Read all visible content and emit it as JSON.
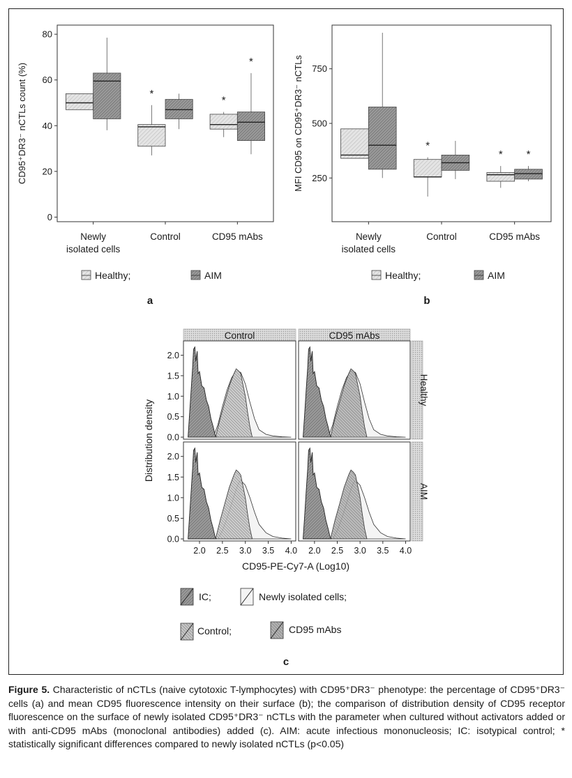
{
  "figure": {
    "caption_label": "Figure 5.",
    "caption_text": " Characteristic of nCTLs (naive cytotoxic T-lymphocytes) with CD95⁺DR3⁻ phenotype: the percentage of CD95⁺DR3⁻ cells (a) and mean CD95 fluorescence intensity on their surface (b); the comparison of distribution density of CD95 receptor fluorescence on the surface of newly isolated CD95⁺DR3⁻ nCTLs with the parameter when cultured without activators added or with anti-CD95 mAbs (monoclonal antibodies) added (c). AIM: acute infectious mononucleosis; IC: isotypical control; * statistically significant differences compared to newly isolated nCTLs (p<0.05)"
  },
  "colors": {
    "healthy_fill": "#e6e6e6",
    "aim_fill": "#8c8c8c",
    "ic_fill": "#6e6e6e",
    "newly_fill": "#f2f2f2",
    "control_fill": "#c4c4c4",
    "mabs_fill": "#a8a8a8",
    "strip_bg": "#d9d9d9"
  },
  "chart_data": [
    {
      "panel": "a",
      "type": "box",
      "ylabel": "CD95⁺DR3⁻ nCTLs count (%)",
      "categories": [
        "Newly isolated cells",
        "Control",
        "CD95 mAbs"
      ],
      "category_lines": [
        [
          "Newly",
          "isolated cells"
        ],
        [
          "Control"
        ],
        [
          "CD95 mAbs"
        ]
      ],
      "ylim": [
        -2,
        84
      ],
      "yticks": [
        0,
        20,
        40,
        60,
        80
      ],
      "grid": false,
      "legend": {
        "position": "bottom",
        "items": [
          "Healthy;",
          "AIM"
        ]
      },
      "series": [
        {
          "name": "Healthy",
          "boxes": [
            {
              "min": 47,
              "q1": 47,
              "median": 50,
              "q3": 54,
              "max": 54,
              "star": false
            },
            {
              "min": 27,
              "q1": 31,
              "median": 39.5,
              "q3": 40.5,
              "max": 49,
              "star": true
            },
            {
              "min": 35,
              "q1": 38.5,
              "median": 40.5,
              "q3": 45,
              "max": 46,
              "star": true
            }
          ]
        },
        {
          "name": "AIM",
          "boxes": [
            {
              "min": 38,
              "q1": 43,
              "median": 59.5,
              "q3": 63,
              "max": 78.5,
              "star": false
            },
            {
              "min": 38.5,
              "q1": 43,
              "median": 47,
              "q3": 51.5,
              "max": 54,
              "star": false
            },
            {
              "min": 27.5,
              "q1": 33.5,
              "median": 41.5,
              "q3": 46,
              "max": 63,
              "star": true
            }
          ]
        }
      ]
    },
    {
      "panel": "b",
      "type": "box",
      "ylabel": "MFI CD95 on CD95⁺DR3⁻ nCTLs",
      "categories": [
        "Newly isolated cells",
        "Control",
        "CD95 mAbs"
      ],
      "category_lines": [
        [
          "Newly",
          "isolated cells"
        ],
        [
          "Control"
        ],
        [
          "CD95 mAbs"
        ]
      ],
      "ylim": [
        50,
        950
      ],
      "yticks": [
        250,
        500,
        750
      ],
      "grid": false,
      "legend": {
        "position": "bottom",
        "items": [
          "Healthy;",
          "AIM"
        ]
      },
      "series": [
        {
          "name": "Healthy",
          "boxes": [
            {
              "min": 340,
              "q1": 340,
              "median": 355,
              "q3": 475,
              "max": 475,
              "star": false
            },
            {
              "min": 165,
              "q1": 255,
              "median": 255,
              "q3": 335,
              "max": 345,
              "star": true
            },
            {
              "min": 205,
              "q1": 235,
              "median": 265,
              "q3": 275,
              "max": 305,
              "star": true
            }
          ]
        },
        {
          "name": "AIM",
          "boxes": [
            {
              "min": 250,
              "q1": 290,
              "median": 400,
              "q3": 575,
              "max": 915,
              "star": false
            },
            {
              "min": 245,
              "q1": 285,
              "median": 320,
              "q3": 355,
              "max": 420,
              "star": false
            },
            {
              "min": 235,
              "q1": 245,
              "median": 270,
              "q3": 290,
              "max": 305,
              "star": true
            }
          ]
        }
      ]
    },
    {
      "panel": "c",
      "type": "area",
      "xlabel": "CD95-PE-Cy7-A (Log10)",
      "ylabel": "Distribution density",
      "xlim": [
        1.65,
        4.1
      ],
      "ylim": [
        -0.05,
        2.35
      ],
      "xticks": [
        2.0,
        2.5,
        3.0,
        3.5,
        4.0
      ],
      "yticks": [
        0.0,
        0.5,
        1.0,
        1.5,
        2.0
      ],
      "grid": false,
      "columns": [
        "Control",
        "CD95 mAbs"
      ],
      "rows": [
        "Healthy",
        "AIM"
      ],
      "legend": {
        "position": "bottom",
        "items": [
          "IC;",
          "Newly isolated cells;",
          "Control;",
          "CD95 mAbs"
        ]
      },
      "ic_curve": {
        "x": [
          1.75,
          1.78,
          1.82,
          1.85,
          1.87,
          1.9,
          1.92,
          1.95,
          1.97,
          2.0,
          2.05,
          2.1,
          2.15,
          2.2,
          2.25,
          2.3,
          2.34,
          2.37
        ],
        "y": [
          0.0,
          0.5,
          1.2,
          1.7,
          2.15,
          2.2,
          1.85,
          2.1,
          1.55,
          1.6,
          1.25,
          1.2,
          0.9,
          0.75,
          0.45,
          0.25,
          0.05,
          0.0
        ]
      },
      "newly_isolated_curve": {
        "x": [
          2.3,
          2.4,
          2.5,
          2.6,
          2.7,
          2.8,
          2.9,
          3.0,
          3.1,
          3.2,
          3.3,
          3.45,
          3.6,
          3.8,
          4.0
        ],
        "y": [
          0.0,
          0.3,
          0.75,
          1.15,
          1.45,
          1.62,
          1.58,
          1.3,
          0.85,
          0.45,
          0.18,
          0.07,
          0.03,
          0.01,
          0.0
        ]
      },
      "cultured_curve": {
        "x": [
          2.35,
          2.45,
          2.55,
          2.65,
          2.75,
          2.8,
          2.85,
          2.9,
          3.0,
          3.05,
          3.1,
          3.15
        ],
        "y": [
          0.0,
          0.45,
          0.85,
          1.25,
          1.55,
          1.67,
          1.62,
          1.55,
          1.0,
          0.6,
          0.25,
          0.0
        ]
      },
      "newly_isolated_curve_aim": {
        "x": [
          2.4,
          2.5,
          2.6,
          2.7,
          2.8,
          2.85,
          2.9,
          3.0,
          3.1,
          3.2,
          3.3,
          3.45,
          3.6,
          3.8,
          4.0
        ],
        "y": [
          0.0,
          0.2,
          0.5,
          0.85,
          1.2,
          1.35,
          1.42,
          1.3,
          1.0,
          0.65,
          0.35,
          0.15,
          0.06,
          0.02,
          0.0
        ]
      }
    }
  ],
  "panel_letters": {
    "a": "a",
    "b": "b",
    "c": "c"
  }
}
